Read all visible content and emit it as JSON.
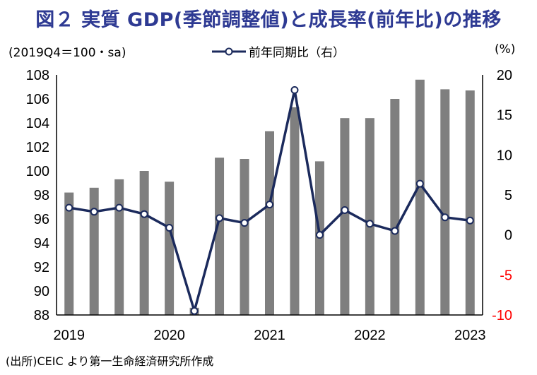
{
  "title": "図２ 実質 GDP(季節調整値)と成長率(前年比)の推移",
  "left_axis_unit": "(2019Q4＝100・sa)",
  "right_axis_unit": "(%)",
  "legend_label": "前年同期比（右）",
  "source_note": "(出所)CEIC より第一生命経済研究所作成",
  "colors": {
    "title": "#2e3a93",
    "bar": "#7f7f7f",
    "line": "#1b2a5c",
    "negative": "#ff0000"
  },
  "chart_data": {
    "type": "bar+line",
    "categories": [
      "2019Q1",
      "2019Q2",
      "2019Q3",
      "2019Q4",
      "2020Q1",
      "2020Q2",
      "2020Q3",
      "2020Q4",
      "2021Q1",
      "2021Q2",
      "2021Q3",
      "2021Q4",
      "2022Q1",
      "2022Q2",
      "2022Q3",
      "2022Q4",
      "2023Q1"
    ],
    "x_tick_labels": [
      "2019",
      "2020",
      "2021",
      "2022",
      "2023"
    ],
    "bar_series": {
      "axis": "left",
      "values": [
        98.2,
        98.6,
        99.3,
        100.0,
        99.1,
        88.6,
        101.1,
        101.0,
        103.3,
        105.3,
        100.8,
        104.4,
        104.4,
        106.0,
        107.6,
        106.8,
        106.7
      ]
    },
    "line_series": {
      "name": "前年同期比（右）",
      "axis": "right",
      "values": [
        3.4,
        2.9,
        3.4,
        2.6,
        0.9,
        -9.5,
        2.1,
        1.5,
        3.8,
        18.1,
        0.0,
        3.1,
        1.4,
        0.5,
        6.4,
        2.2,
        1.8
      ]
    },
    "ylim_left": [
      88,
      108
    ],
    "yticks_left": [
      88,
      90,
      92,
      94,
      96,
      98,
      100,
      102,
      104,
      106,
      108
    ],
    "ylim_right": [
      -10,
      20
    ],
    "yticks_right": [
      -10,
      -5,
      0,
      5,
      10,
      15,
      20
    ]
  }
}
